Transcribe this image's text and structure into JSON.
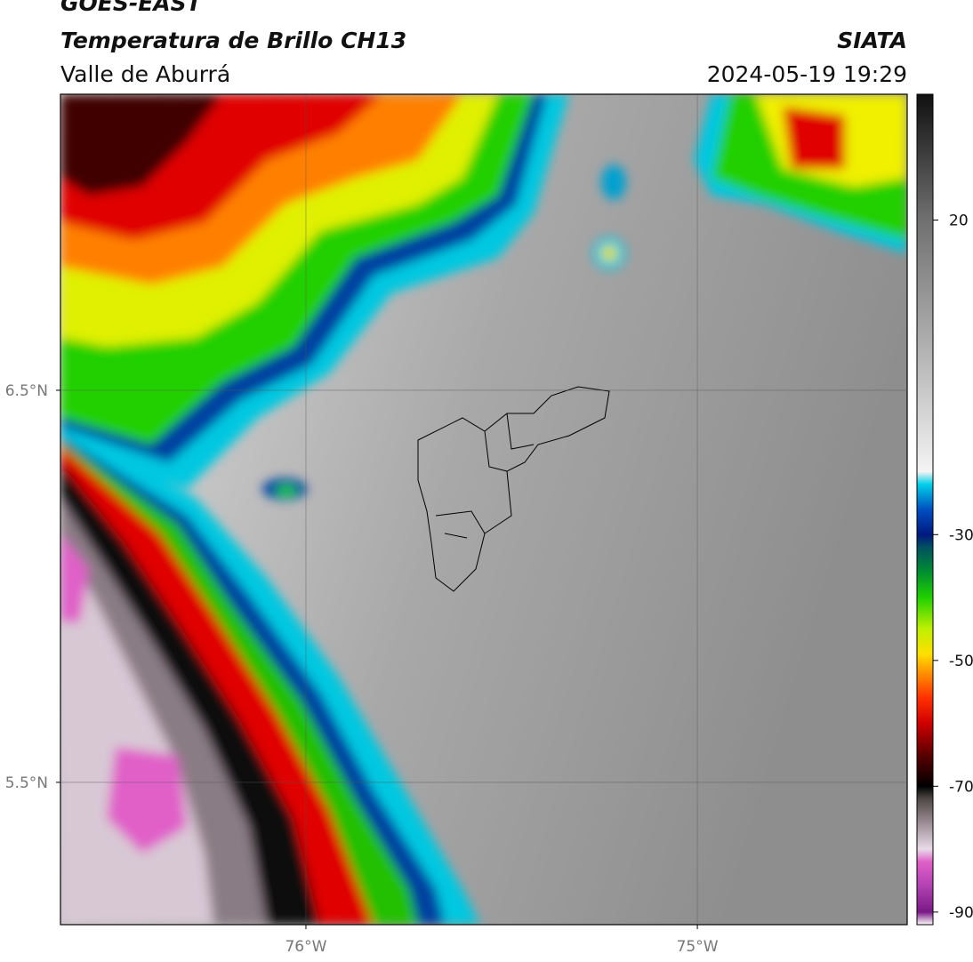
{
  "header": {
    "satellite": "GOES-EAST",
    "product": "Temperatura de Brillo CH13",
    "region": "Valle de Aburrá",
    "agency": "SIATA",
    "datetime": "2024-05-19 19:29"
  },
  "map": {
    "xlim": [
      -76.627,
      -74.464
    ],
    "ylim": [
      5.137,
      7.255
    ],
    "xticks": [
      {
        "value": -76,
        "label": "76°W"
      },
      {
        "value": -75,
        "label": "75°W"
      }
    ],
    "yticks": [
      {
        "value": 6.5,
        "label": "6.5°N"
      },
      {
        "value": 5.5,
        "label": "5.5°N"
      }
    ],
    "grid": true
  },
  "colorbar": {
    "lim": [
      -92,
      40
    ],
    "ticks": [
      20,
      -30,
      -50,
      -70,
      -90
    ],
    "stops": [
      [
        -92,
        "#ffffff"
      ],
      [
        -90,
        "#7a1a86"
      ],
      [
        -86,
        "#b040b0"
      ],
      [
        -82,
        "#e060c8"
      ],
      [
        -80,
        "#e8dce8"
      ],
      [
        -76,
        "#a09098"
      ],
      [
        -72,
        "#504848"
      ],
      [
        -70,
        "#000000"
      ],
      [
        -65,
        "#5a0000"
      ],
      [
        -60,
        "#d00000"
      ],
      [
        -56,
        "#ff3000"
      ],
      [
        -52,
        "#ff9000"
      ],
      [
        -49,
        "#ffe000"
      ],
      [
        -45,
        "#c0f000"
      ],
      [
        -40,
        "#20d000"
      ],
      [
        -36,
        "#009030"
      ],
      [
        -32,
        "#005060"
      ],
      [
        -30,
        "#001880"
      ],
      [
        -26,
        "#0050c0"
      ],
      [
        -22,
        "#00d0e8"
      ],
      [
        -20,
        "#f4f4f4"
      ],
      [
        0,
        "#b0b0b0"
      ],
      [
        20,
        "#707070"
      ],
      [
        40,
        "#101010"
      ]
    ]
  }
}
